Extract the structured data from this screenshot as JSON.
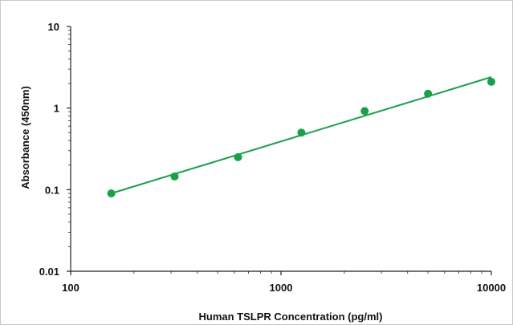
{
  "chart_data": {
    "type": "scatter",
    "title": "",
    "xlabel": "Human TSLPR Concentration (pg/ml)",
    "ylabel": "Absorbance (450nm)",
    "x_scale": "log",
    "y_scale": "log",
    "xlim": [
      100,
      10000
    ],
    "ylim": [
      0.01,
      10
    ],
    "x_ticks": [
      100,
      1000,
      10000
    ],
    "x_tick_labels": [
      "100",
      "1000",
      "10000"
    ],
    "y_ticks": [
      10,
      1,
      0.1,
      0.01
    ],
    "y_tick_labels": [
      "10",
      "1",
      "0.1",
      "0.01"
    ],
    "grid": false,
    "legend": "none",
    "series": [
      {
        "x": [
          156,
          312,
          625,
          1250,
          2500,
          5000,
          10000
        ],
        "y": [
          0.09,
          0.145,
          0.25,
          0.5,
          0.92,
          1.5,
          2.1
        ],
        "color": "#1aa04a"
      }
    ],
    "trendline": {
      "x": [
        156,
        10000
      ],
      "y": [
        0.09,
        2.4
      ],
      "color": "#1aa04a"
    }
  }
}
